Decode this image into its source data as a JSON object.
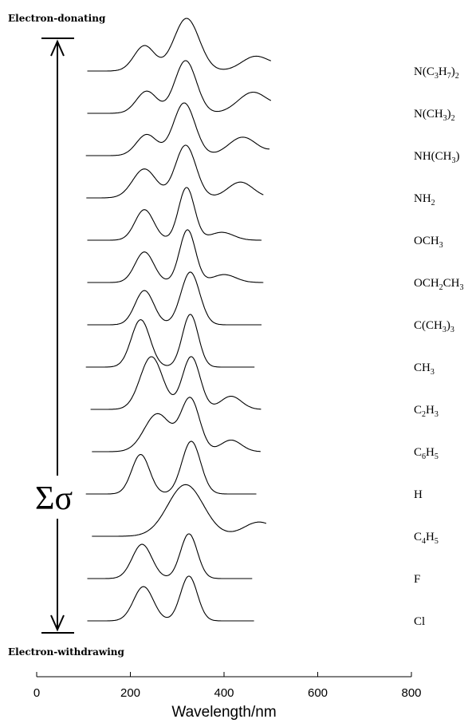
{
  "chart_data": {
    "type": "line",
    "top_label": "Electron-donating",
    "bottom_label": "Electron-withdrawing",
    "sigma_label": "Σσ",
    "xlabel": "Wavelength/nm",
    "xlim": [
      0,
      800
    ],
    "xticks": [
      "0",
      "200",
      "400",
      "600",
      "800"
    ],
    "series": [
      {
        "name": "N(C3H7)2",
        "parts": [
          [
            "N(C"
          ],
          [
            "3",
            "sub"
          ],
          [
            "H"
          ],
          [
            "7",
            "sub"
          ],
          [
            ")"
          ],
          [
            "2",
            "sub"
          ]
        ],
        "xrange": [
          108,
          500
        ],
        "peaks": [
          [
            230,
            0.48,
            22
          ],
          [
            320,
            1.0,
            27
          ],
          [
            468,
            0.28,
            30
          ],
          [
            540,
            0.12,
            25
          ],
          [
            645,
            0.45,
            42
          ]
        ]
      },
      {
        "name": "N(CH3)2",
        "parts": [
          [
            "N(CH"
          ],
          [
            "3",
            "sub"
          ],
          [
            ")"
          ],
          [
            "2",
            "sub"
          ]
        ],
        "xrange": [
          108,
          500
        ],
        "peaks": [
          [
            235,
            0.42,
            22
          ],
          [
            318,
            1.0,
            23
          ],
          [
            462,
            0.4,
            32
          ],
          [
            540,
            0.15,
            25
          ],
          [
            635,
            0.5,
            42
          ]
        ]
      },
      {
        "name": "NH(CH3)",
        "parts": [
          [
            "NH(CH"
          ],
          [
            "3",
            "sub"
          ],
          [
            ")"
          ]
        ],
        "xrange": [
          105,
          498
        ],
        "peaks": [
          [
            235,
            0.4,
            22
          ],
          [
            315,
            1.0,
            23
          ],
          [
            440,
            0.35,
            30
          ],
          [
            530,
            0.15,
            25
          ],
          [
            625,
            0.52,
            42
          ]
        ]
      },
      {
        "name": "NH2",
        "parts": [
          [
            "NH"
          ],
          [
            "2",
            "sub"
          ]
        ],
        "xrange": [
          106,
          485
        ],
        "peaks": [
          [
            230,
            0.55,
            25
          ],
          [
            318,
            1.0,
            22
          ],
          [
            435,
            0.3,
            27
          ],
          [
            625,
            0.48,
            40
          ]
        ]
      },
      {
        "name": "OCH3",
        "parts": [
          [
            "OCH"
          ],
          [
            "3",
            "sub"
          ]
        ],
        "xrange": [
          108,
          480
        ],
        "peaks": [
          [
            230,
            0.58,
            20
          ],
          [
            320,
            1.0,
            17
          ],
          [
            395,
            0.15,
            25
          ],
          [
            612,
            0.65,
            22
          ]
        ]
      },
      {
        "name": "OCH2CH3",
        "parts": [
          [
            "OCH"
          ],
          [
            "2",
            "sub"
          ],
          [
            "CH"
          ],
          [
            "3",
            "sub"
          ]
        ],
        "xrange": [
          108,
          485
        ],
        "peaks": [
          [
            230,
            0.58,
            20
          ],
          [
            322,
            1.0,
            17
          ],
          [
            400,
            0.15,
            25
          ],
          [
            612,
            0.6,
            22
          ]
        ]
      },
      {
        "name": "C(CH3)3",
        "parts": [
          [
            "C(CH"
          ],
          [
            "3",
            "sub"
          ],
          [
            ")"
          ],
          [
            "3",
            "sub"
          ]
        ],
        "xrange": [
          108,
          480
        ],
        "peaks": [
          [
            230,
            0.65,
            20
          ],
          [
            328,
            1.0,
            20
          ],
          [
            602,
            0.75,
            17
          ]
        ]
      },
      {
        "name": "CH3",
        "parts": [
          [
            "CH"
          ],
          [
            "3",
            "sub"
          ]
        ],
        "xrange": [
          105,
          465
        ],
        "peaks": [
          [
            222,
            0.9,
            20
          ],
          [
            328,
            1.0,
            17
          ],
          [
            598,
            0.72,
            17
          ]
        ]
      },
      {
        "name": "C2H3",
        "parts": [
          [
            "C"
          ],
          [
            "2",
            "sub"
          ],
          [
            "H"
          ],
          [
            "3",
            "sub"
          ]
        ],
        "xrange": [
          115,
          480
        ],
        "peaks": [
          [
            245,
            1.0,
            24
          ],
          [
            330,
            1.0,
            19
          ],
          [
            415,
            0.25,
            22
          ],
          [
            612,
            0.85,
            17
          ]
        ]
      },
      {
        "name": "C6H5",
        "parts": [
          [
            "C"
          ],
          [
            "6",
            "sub"
          ],
          [
            "H"
          ],
          [
            "5",
            "sub"
          ]
        ],
        "xrange": [
          118,
          478
        ],
        "peaks": [
          [
            258,
            0.72,
            28
          ],
          [
            328,
            1.0,
            20
          ],
          [
            415,
            0.22,
            22
          ],
          [
            610,
            0.78,
            17
          ]
        ]
      },
      {
        "name": "H",
        "parts": [
          [
            "H"
          ]
        ],
        "xrange": [
          105,
          470
        ],
        "peaks": [
          [
            222,
            0.75,
            19
          ],
          [
            330,
            1.0,
            20
          ],
          [
            600,
            0.5,
            17
          ]
        ]
      },
      {
        "name": "C4H5",
        "parts": [
          [
            "C"
          ],
          [
            "4",
            "sub"
          ],
          [
            "H"
          ],
          [
            "5",
            "sub"
          ]
        ],
        "xrange": [
          118,
          490
        ],
        "peaks": [
          [
            318,
            0.98,
            38
          ],
          [
            475,
            0.27,
            33
          ],
          [
            638,
            0.55,
            17
          ]
        ]
      },
      {
        "name": "F",
        "parts": [
          [
            "F"
          ]
        ],
        "xrange": [
          108,
          460
        ],
        "peaks": [
          [
            225,
            0.65,
            21
          ],
          [
            325,
            0.85,
            18
          ],
          [
            595,
            0.45,
            17
          ]
        ]
      },
      {
        "name": "Cl",
        "parts": [
          [
            "Cl"
          ]
        ],
        "xrange": [
          108,
          465
        ],
        "peaks": [
          [
            228,
            0.65,
            21
          ],
          [
            325,
            0.85,
            18
          ],
          [
            598,
            0.45,
            17
          ]
        ]
      }
    ]
  }
}
